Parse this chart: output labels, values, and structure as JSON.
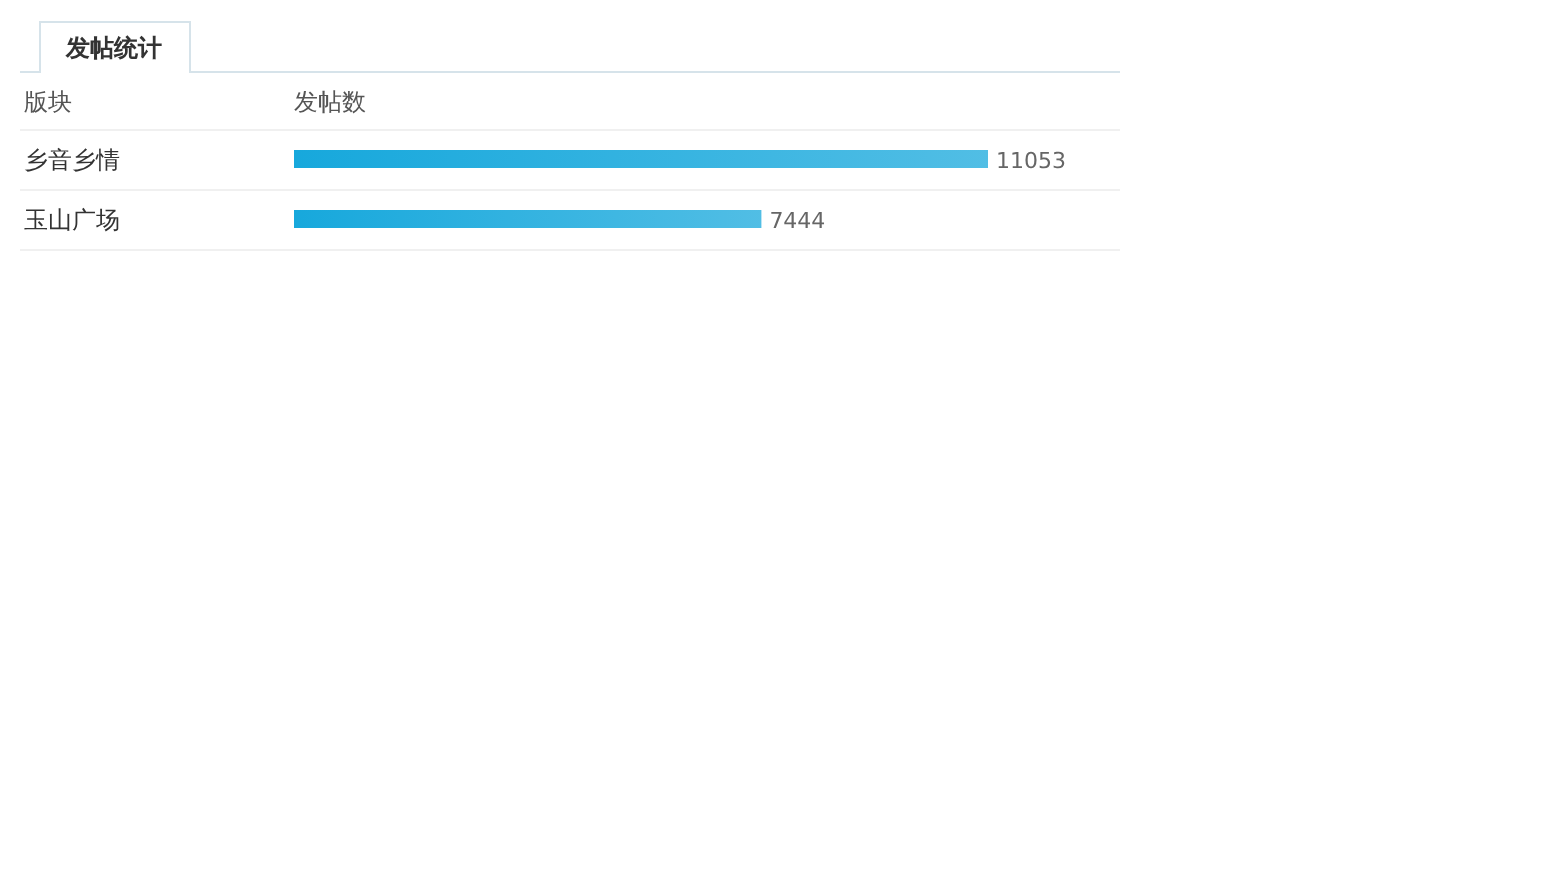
{
  "chart_data": {
    "type": "bar",
    "orientation": "horizontal",
    "title": "发帖统计",
    "ylabel": "版块",
    "xlabel": "发帖数",
    "categories": [
      "乡音乡情",
      "玉山广场"
    ],
    "values": [
      11053,
      7444
    ],
    "color": "#17a8dc",
    "data_labels": true
  }
}
